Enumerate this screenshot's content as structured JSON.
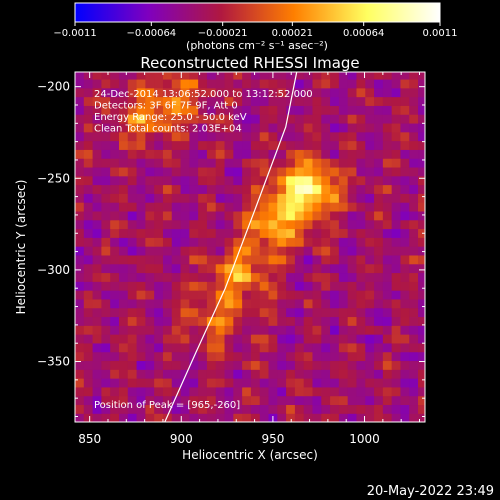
{
  "chart_data": {
    "type": "heatmap",
    "title": "Reconstructed RHESSI Image",
    "xlabel": "Heliocentric X (arcsec)",
    "ylabel": "Heliocentric Y (arcsec)",
    "xlim": [
      842,
      1033
    ],
    "ylim": [
      -383,
      -192
    ],
    "x_ticks": [
      850,
      900,
      950,
      1000
    ],
    "x_tick_labels": [
      "850",
      "900",
      "950",
      "1000"
    ],
    "y_ticks": [
      -200,
      -250,
      -300,
      -350
    ],
    "y_tick_labels": [
      "−200",
      "−250",
      "−300",
      "−350"
    ],
    "colorbar": {
      "unit_label": "(photons cm⁻² s⁻¹ asec⁻²)",
      "range": [
        -0.0011,
        0.0011
      ],
      "ticks": [
        -0.0011,
        -0.00064,
        -0.00021,
        0.00021,
        0.00064,
        0.0011
      ],
      "tick_labels": [
        "−0.0011",
        "−0.00064",
        "−0.00021",
        "0.00021",
        "0.00064",
        "0.0011"
      ],
      "colors": [
        "#0000ff",
        "#7f00bf",
        "#b01840",
        "#ff7f00",
        "#ffff60",
        "#ffffff"
      ]
    },
    "annotations": [
      "24-Dec-2014 13:06:52.000 to 13:12:52.000",
      "Detectors: 3F 6F 7F 9F, Att 0",
      "Energy Range: 25.0 - 50.0 keV",
      "Clean    Total counts: 2.03E+04"
    ],
    "peak_label": "Position of Peak = [965,-260]",
    "sources": [
      {
        "x": 966,
        "y": -258,
        "peak": 0.0011
      },
      {
        "x": 948,
        "y": -278,
        "peak": 0.0007
      },
      {
        "x": 930,
        "y": -305,
        "peak": 0.0006
      },
      {
        "x": 915,
        "y": -330,
        "peak": 0.0004
      },
      {
        "x": 878,
        "y": -218,
        "peak": 0.0005
      },
      {
        "x": 897,
        "y": -208,
        "peak": 0.0004
      }
    ],
    "limb_arc": [
      [
        891,
        -383
      ],
      [
        908,
        -345
      ],
      [
        924,
        -310
      ],
      [
        941,
        -265
      ],
      [
        957,
        -222
      ],
      [
        963,
        -192
      ]
    ]
  },
  "timestamp": "20-May-2022 23:49"
}
